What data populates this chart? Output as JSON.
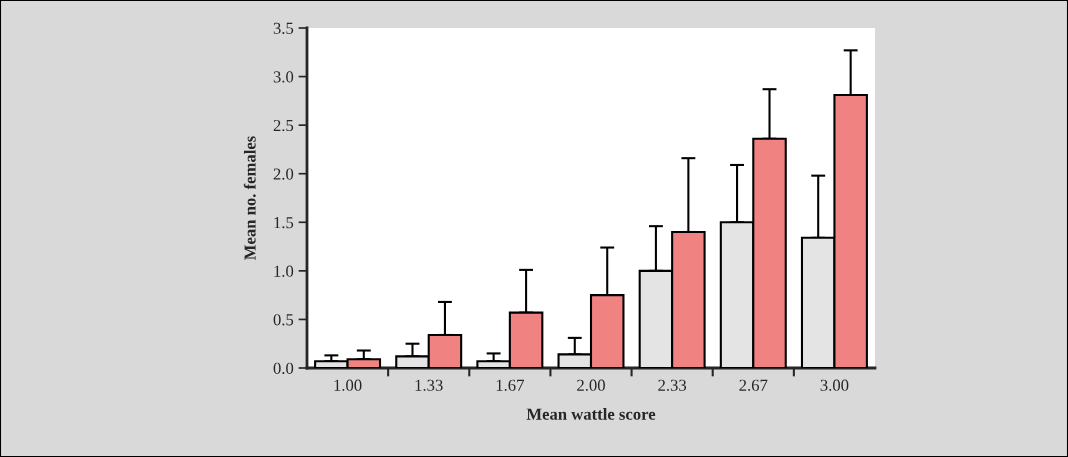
{
  "chart_data": {
    "type": "bar",
    "xlabel": "Mean wattle score",
    "ylabel": "Mean no. females",
    "categories": [
      "1.00",
      "1.33",
      "1.67",
      "2.00",
      "2.33",
      "2.67",
      "3.00"
    ],
    "series": [
      {
        "color": "#e4e4e4",
        "values": [
          0.07,
          0.12,
          0.07,
          0.14,
          1.0,
          1.5,
          1.34
        ],
        "errors": [
          [
            0.07,
            0.13
          ],
          [
            0.12,
            0.25
          ],
          [
            0.07,
            0.15
          ],
          [
            0.14,
            0.31
          ],
          [
            1.0,
            1.46
          ],
          [
            1.5,
            2.09
          ],
          [
            1.34,
            1.98
          ]
        ]
      },
      {
        "color": "#f08282",
        "values": [
          0.09,
          0.34,
          0.57,
          0.75,
          1.4,
          2.36,
          2.81
        ],
        "errors": [
          [
            0.09,
            0.18
          ],
          [
            0.34,
            0.68
          ],
          [
            0.57,
            1.01
          ],
          [
            0.75,
            1.24
          ],
          [
            1.4,
            2.16
          ],
          [
            2.36,
            2.87
          ],
          [
            2.81,
            3.27
          ]
        ]
      }
    ],
    "ylim": [
      0,
      3.5
    ],
    "yticks": [
      {
        "value": 0,
        "label": "0.0"
      },
      {
        "value": 0.5,
        "label": "0.5"
      },
      {
        "value": 1,
        "label": "1.0"
      },
      {
        "value": 1.5,
        "label": "1.5"
      },
      {
        "value": 2,
        "label": "2.0"
      },
      {
        "value": 2.5,
        "label": "2.5"
      },
      {
        "value": 3,
        "label": "3.0"
      },
      {
        "value": 3.5,
        "label": "3.5"
      }
    ],
    "grid": false,
    "legend": false
  }
}
